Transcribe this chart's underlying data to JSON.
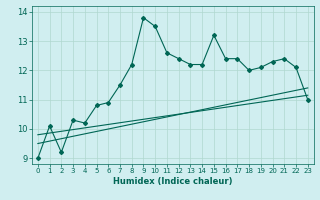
{
  "xlabel": "Humidex (Indice chaleur)",
  "ylabel": "",
  "xlim": [
    -0.5,
    23.5
  ],
  "ylim": [
    8.8,
    14.2
  ],
  "yticks": [
    9,
    10,
    11,
    12,
    13,
    14
  ],
  "xticks": [
    0,
    1,
    2,
    3,
    4,
    5,
    6,
    7,
    8,
    9,
    10,
    11,
    12,
    13,
    14,
    15,
    16,
    17,
    18,
    19,
    20,
    21,
    22,
    23
  ],
  "bg_color": "#d0eef0",
  "grid_color": "#b0d8d0",
  "line_color": "#006655",
  "line1_x": [
    0,
    1,
    2,
    3,
    4,
    5,
    6,
    7,
    8,
    9,
    10,
    11,
    12,
    13,
    14,
    15,
    16,
    17,
    18,
    19,
    20,
    21,
    22,
    23
  ],
  "line1_y": [
    9.0,
    10.1,
    9.2,
    10.3,
    10.2,
    10.8,
    10.9,
    11.5,
    12.2,
    13.8,
    13.5,
    12.6,
    12.4,
    12.2,
    12.2,
    13.2,
    12.4,
    12.4,
    12.0,
    12.1,
    12.3,
    12.4,
    12.1,
    11.0
  ],
  "line2_x": [
    0,
    23
  ],
  "line2_y": [
    9.5,
    11.4
  ],
  "line3_x": [
    0,
    23
  ],
  "line3_y": [
    9.8,
    11.15
  ],
  "marker": "D",
  "markersize": 2.0,
  "linewidth": 0.8
}
